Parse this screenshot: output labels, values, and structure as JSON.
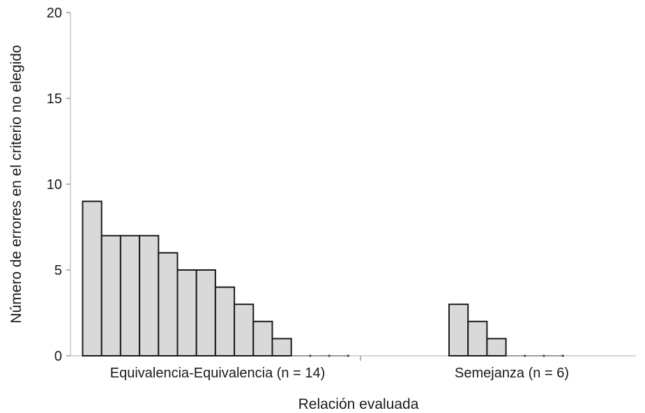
{
  "chart_data": {
    "type": "bar",
    "xlabel": "Relación evaluada",
    "ylabel": "Número de errores en el criterio no elegido",
    "ylim": [
      0,
      20
    ],
    "yticks": [
      0,
      5,
      10,
      15,
      20
    ],
    "grid": false,
    "categories": [
      "Equivalencia-Equivalencia (n = 14)",
      "Semejanza (n = 6)"
    ],
    "groups": [
      {
        "category": "Equivalencia-Equivalencia (n = 14)",
        "values": [
          9,
          7,
          7,
          7,
          6,
          5,
          5,
          4,
          3,
          2,
          1,
          0,
          0,
          0
        ]
      },
      {
        "category": "Semejanza (n = 6)",
        "values": [
          3,
          2,
          1,
          0,
          0,
          0
        ]
      }
    ],
    "bar_fill": "#d9d9d9",
    "bar_stroke": "#1a1a1a"
  }
}
